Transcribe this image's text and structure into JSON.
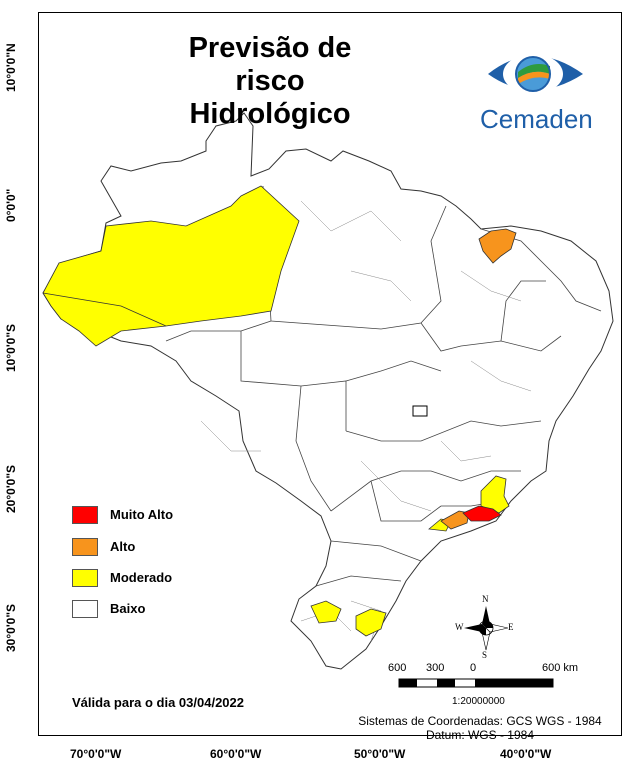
{
  "title_line1": "Previsão de risco",
  "title_line2": "Hidrológico",
  "logo_text": "Cemaden",
  "legend": [
    {
      "label": "Muito Alto",
      "color": "#ff0000"
    },
    {
      "label": "Alto",
      "color": "#f7941d"
    },
    {
      "label": "Moderado",
      "color": "#ffff00"
    },
    {
      "label": "Baixo",
      "color": "#ffffff"
    }
  ],
  "valid_date": "Válida para o dia 03/04/2022",
  "coord_system": "Sistemas de Coordenadas: GCS WGS - 1984",
  "datum": "Datum: WGS - 1984",
  "scale": {
    "labels": [
      "600",
      "300",
      "0",
      "600 km"
    ],
    "ratio": "1:20000000"
  },
  "compass": {
    "n": "N",
    "s": "S",
    "e": "E",
    "w": "W"
  },
  "lon_labels": [
    "70°0'0\"W",
    "60°0'0\"W",
    "50°0'0\"W",
    "40°0'0\"W"
  ],
  "lat_labels": [
    "10°0'0\"N",
    "0°0'0\"",
    "10°0'0\"S",
    "20°0'0\"S",
    "30°0'0\"S"
  ],
  "colors": {
    "high": "#ff0000",
    "alto": "#f7941d",
    "moderado": "#ffff00",
    "baixo": "#ffffff",
    "border": "#333333"
  }
}
